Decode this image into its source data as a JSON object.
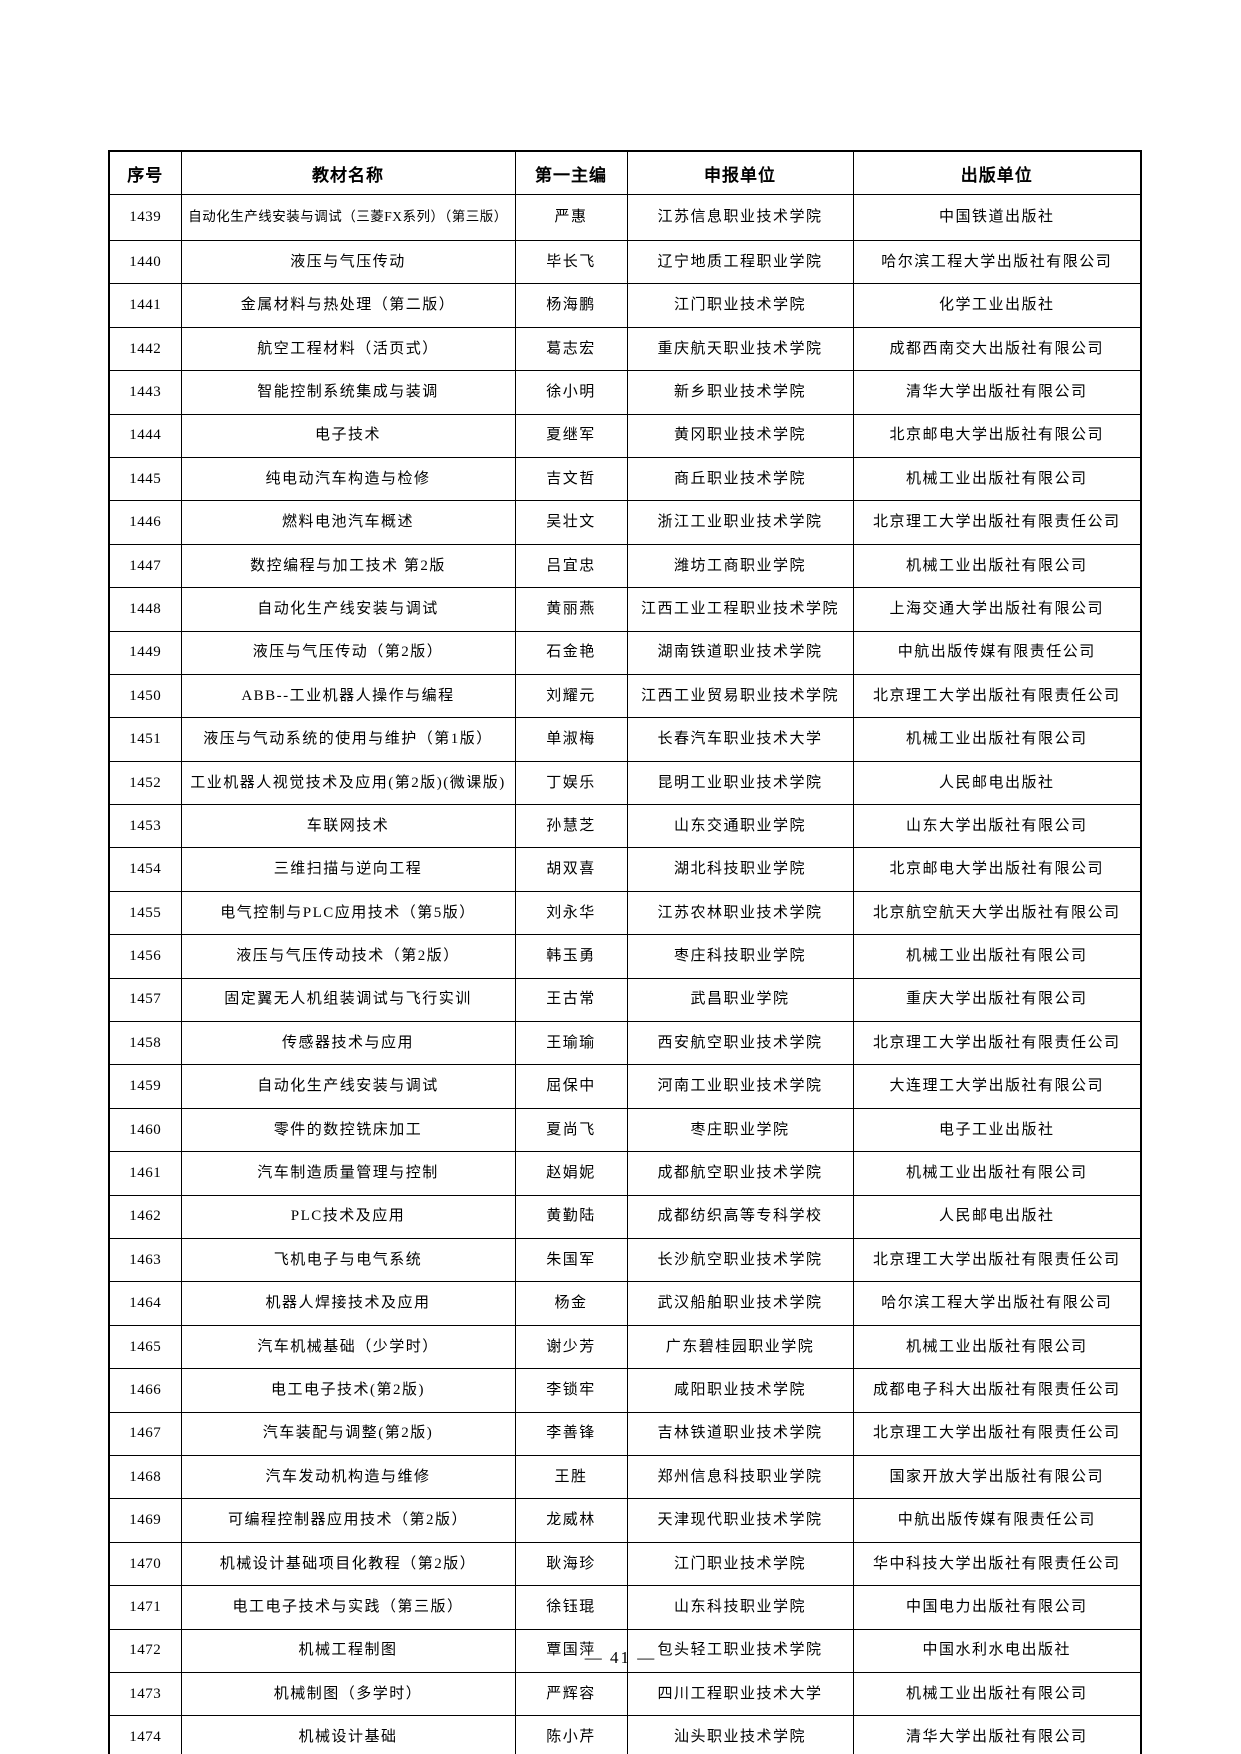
{
  "footer": {
    "page_label": "— 41 —"
  },
  "table": {
    "headers": [
      "序号",
      "教材名称",
      "第一主编",
      "申报单位",
      "出版单位"
    ],
    "rows": [
      [
        "1439",
        "自动化生产线安装与调试（三菱FX系列）（第三版）",
        "严惠",
        "江苏信息职业技术学院",
        "中国铁道出版社"
      ],
      [
        "1440",
        "液压与气压传动",
        "毕长飞",
        "辽宁地质工程职业学院",
        "哈尔滨工程大学出版社有限公司"
      ],
      [
        "1441",
        "金属材料与热处理（第二版）",
        "杨海鹏",
        "江门职业技术学院",
        "化学工业出版社"
      ],
      [
        "1442",
        "航空工程材料（活页式）",
        "葛志宏",
        "重庆航天职业技术学院",
        "成都西南交大出版社有限公司"
      ],
      [
        "1443",
        "智能控制系统集成与装调",
        "徐小明",
        "新乡职业技术学院",
        "清华大学出版社有限公司"
      ],
      [
        "1444",
        "电子技术",
        "夏继军",
        "黄冈职业技术学院",
        "北京邮电大学出版社有限公司"
      ],
      [
        "1445",
        "纯电动汽车构造与检修",
        "吉文哲",
        "商丘职业技术学院",
        "机械工业出版社有限公司"
      ],
      [
        "1446",
        "燃料电池汽车概述",
        "吴壮文",
        "浙江工业职业技术学院",
        "北京理工大学出版社有限责任公司"
      ],
      [
        "1447",
        "数控编程与加工技术 第2版",
        "吕宜忠",
        "潍坊工商职业学院",
        "机械工业出版社有限公司"
      ],
      [
        "1448",
        "自动化生产线安装与调试",
        "黄丽燕",
        "江西工业工程职业技术学院",
        "上海交通大学出版社有限公司"
      ],
      [
        "1449",
        "液压与气压传动（第2版）",
        "石金艳",
        "湖南铁道职业技术学院",
        "中航出版传媒有限责任公司"
      ],
      [
        "1450",
        "ABB--工业机器人操作与编程",
        "刘耀元",
        "江西工业贸易职业技术学院",
        "北京理工大学出版社有限责任公司"
      ],
      [
        "1451",
        "液压与气动系统的使用与维护（第1版）",
        "单淑梅",
        "长春汽车职业技术大学",
        "机械工业出版社有限公司"
      ],
      [
        "1452",
        "工业机器人视觉技术及应用(第2版)(微课版)",
        "丁娱乐",
        "昆明工业职业技术学院",
        "人民邮电出版社"
      ],
      [
        "1453",
        "车联网技术",
        "孙慧芝",
        "山东交通职业学院",
        "山东大学出版社有限公司"
      ],
      [
        "1454",
        "三维扫描与逆向工程",
        "胡双喜",
        "湖北科技职业学院",
        "北京邮电大学出版社有限公司"
      ],
      [
        "1455",
        "电气控制与PLC应用技术（第5版）",
        "刘永华",
        "江苏农林职业技术学院",
        "北京航空航天大学出版社有限公司"
      ],
      [
        "1456",
        "液压与气压传动技术（第2版）",
        "韩玉勇",
        "枣庄科技职业学院",
        "机械工业出版社有限公司"
      ],
      [
        "1457",
        "固定翼无人机组装调试与飞行实训",
        "王古常",
        "武昌职业学院",
        "重庆大学出版社有限公司"
      ],
      [
        "1458",
        "传感器技术与应用",
        "王瑜瑜",
        "西安航空职业技术学院",
        "北京理工大学出版社有限责任公司"
      ],
      [
        "1459",
        "自动化生产线安装与调试",
        "屈保中",
        "河南工业职业技术学院",
        "大连理工大学出版社有限公司"
      ],
      [
        "1460",
        "零件的数控铣床加工",
        "夏尚飞",
        "枣庄职业学院",
        "电子工业出版社"
      ],
      [
        "1461",
        "汽车制造质量管理与控制",
        "赵娟妮",
        "成都航空职业技术学院",
        "机械工业出版社有限公司"
      ],
      [
        "1462",
        "PLC技术及应用",
        "黄勤陆",
        "成都纺织高等专科学校",
        "人民邮电出版社"
      ],
      [
        "1463",
        "飞机电子与电气系统",
        "朱国军",
        "长沙航空职业技术学院",
        "北京理工大学出版社有限责任公司"
      ],
      [
        "1464",
        "机器人焊接技术及应用",
        "杨金",
        "武汉船舶职业技术学院",
        "哈尔滨工程大学出版社有限公司"
      ],
      [
        "1465",
        "汽车机械基础（少学时）",
        "谢少芳",
        "广东碧桂园职业学院",
        "机械工业出版社有限公司"
      ],
      [
        "1466",
        "电工电子技术(第2版)",
        "李锁牢",
        "咸阳职业技术学院",
        "成都电子科大出版社有限责任公司"
      ],
      [
        "1467",
        "汽车装配与调整(第2版)",
        "李善锋",
        "吉林铁道职业技术学院",
        "北京理工大学出版社有限责任公司"
      ],
      [
        "1468",
        "汽车发动机构造与维修",
        "王胜",
        "郑州信息科技职业学院",
        "国家开放大学出版社有限公司"
      ],
      [
        "1469",
        "可编程控制器应用技术（第2版）",
        "龙威林",
        "天津现代职业技术学院",
        "中航出版传媒有限责任公司"
      ],
      [
        "1470",
        "机械设计基础项目化教程（第2版）",
        "耿海珍",
        "江门职业技术学院",
        "华中科技大学出版社有限责任公司"
      ],
      [
        "1471",
        "电工电子技术与实践（第三版）",
        "徐钰琨",
        "山东科技职业学院",
        "中国电力出版社有限公司"
      ],
      [
        "1472",
        "机械工程制图",
        "覃国萍",
        "包头轻工职业技术学院",
        "中国水利水电出版社"
      ],
      [
        "1473",
        "机械制图（多学时）",
        "严辉容",
        "四川工程职业技术大学",
        "机械工业出版社有限公司"
      ],
      [
        "1474",
        "机械设计基础",
        "陈小芹",
        "汕头职业技术学院",
        "清华大学出版社有限公司"
      ]
    ]
  }
}
